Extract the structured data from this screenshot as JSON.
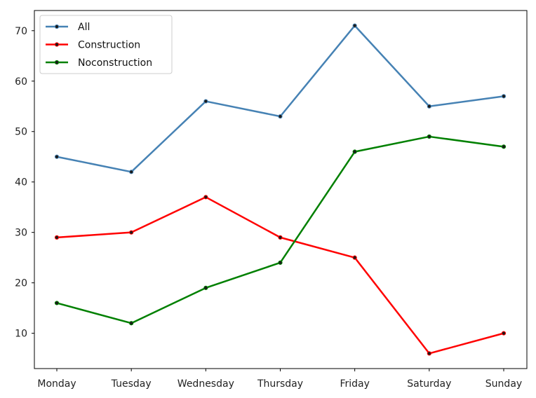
{
  "chart_data": {
    "type": "line",
    "categories": [
      "Monday",
      "Tuesday",
      "Wednesday",
      "Thursday",
      "Friday",
      "Saturday",
      "Sunday"
    ],
    "series": [
      {
        "name": "All",
        "color": "#4682b4",
        "values": [
          45,
          42,
          56,
          53,
          71,
          55,
          57
        ]
      },
      {
        "name": "Construction",
        "color": "#ff0000",
        "values": [
          29,
          30,
          37,
          29,
          25,
          6,
          10
        ]
      },
      {
        "name": "Noconstruction",
        "color": "#008000",
        "values": [
          16,
          12,
          19,
          24,
          46,
          49,
          47
        ]
      }
    ],
    "yticks": [
      10,
      20,
      30,
      40,
      50,
      60,
      70
    ],
    "ylim": [
      3,
      74
    ],
    "grid": false,
    "legend_position": "top-left",
    "marker_color": "#1a1a1a"
  }
}
